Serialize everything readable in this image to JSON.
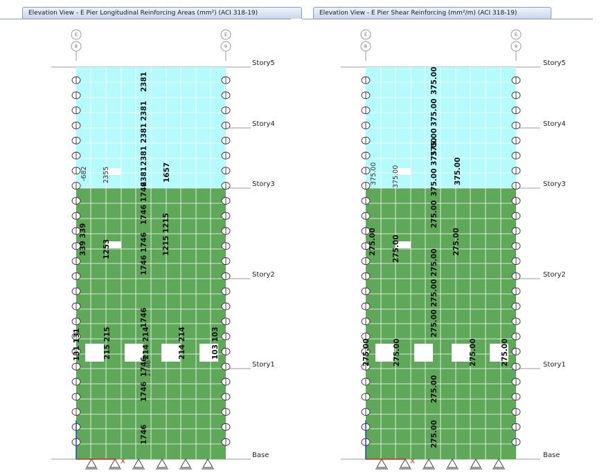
{
  "left_window": {
    "title": "Elevation View - E  Pier Longitudinal Reinforcing Areas (mm²)  (ACI 318-19)",
    "grid_bubbles": [
      "E",
      "8",
      "E",
      "9"
    ],
    "stories": [
      "Story5",
      "Story4",
      "Story3",
      "Story2",
      "Story1",
      "Base"
    ],
    "values": {
      "top_col": [
        "2381",
        "2381",
        "2381 2381",
        "2381",
        "1746 1746",
        "1746 1746",
        "1746",
        "1746",
        "1746",
        "1746"
      ],
      "upper_left": "-682",
      "upper_mid_small": "2355",
      "upper_right": "1657",
      "pier_left_a": "339 339",
      "pier_mid_a": "1253",
      "pier_right_a": "1215 1215",
      "col_extra": "1746",
      "lower_left": "131 131",
      "lower_215": "215 215",
      "lower_214a": "214 214",
      "lower_214b": "214 214",
      "lower_103": "103 103"
    }
  },
  "right_window": {
    "title": "Elevation View - E  Pier Shear Reinforcing (mm²/m)  (ACI 318-19)",
    "grid_bubbles": [
      "E",
      "8",
      "E",
      "9"
    ],
    "stories": [
      "Story5",
      "Story4",
      "Story3",
      "Story2",
      "Story1",
      "Base"
    ],
    "values": {
      "top_col": [
        "375.00",
        "375.00",
        "375.00",
        "375.00 375.00",
        "375.00",
        "275.00",
        "275.00",
        "275.00",
        "275.00",
        "275.00",
        "275.00"
      ],
      "upper_left": "375.00",
      "upper_mid_small": "375.00",
      "upper_right": "375.00",
      "pier_left_a": "275.00",
      "pier_mid_a": "275.00",
      "pier_right_a": "275.00",
      "lower_left": "275.00",
      "lower_a": "275.00",
      "lower_b": "275.00",
      "lower_c": "275.00"
    }
  },
  "colors": {
    "upper_fill": "#b5fafc",
    "lower_fill": "#5fa85a",
    "grid_line": "#ffffff",
    "axis_x": "#e02020",
    "axis_y": "#2040d0"
  }
}
